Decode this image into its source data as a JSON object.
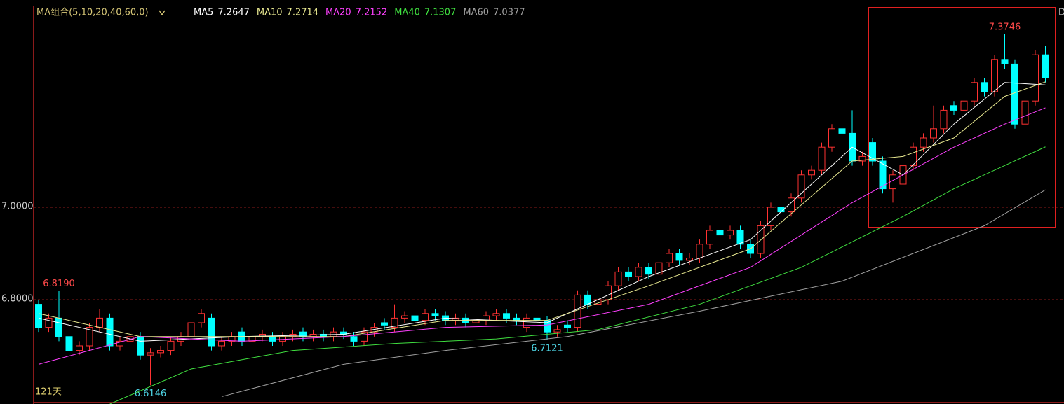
{
  "chart_data": {
    "type": "candlestick",
    "title": "MA组合(5,10,20,40,60,0)",
    "period_label": "121天",
    "corner_label": "D",
    "ylim": [
      6.5742,
      7.4485
    ],
    "yticks": [
      {
        "value": 7.0,
        "label": "7.0000"
      },
      {
        "value": 6.8,
        "label": "6.8000"
      }
    ],
    "grid": true,
    "up_color": "#ff3232",
    "down_color": "#00ffff",
    "high_label_color": "#ff4a4a",
    "low_label_color": "#4fd8e8",
    "open": [
      6.79,
      6.74,
      6.76,
      6.72,
      6.69,
      6.7,
      6.74,
      6.76,
      6.7,
      6.71,
      6.72,
      6.68,
      6.685,
      6.69,
      6.71,
      6.72,
      6.75,
      6.76,
      6.7,
      6.71,
      6.73,
      6.71,
      6.72,
      6.72,
      6.71,
      6.72,
      6.73,
      6.72,
      6.725,
      6.72,
      6.73,
      6.72,
      6.71,
      6.73,
      6.75,
      6.74,
      6.76,
      6.765,
      6.755,
      6.77,
      6.765,
      6.755,
      6.76,
      6.75,
      6.755,
      6.765,
      6.77,
      6.76,
      6.74,
      6.76,
      6.755,
      6.73,
      6.745,
      6.74,
      6.81,
      6.79,
      6.8,
      6.83,
      6.86,
      6.85,
      6.87,
      6.855,
      6.88,
      6.9,
      6.885,
      6.89,
      6.92,
      6.95,
      6.94,
      6.95,
      6.92,
      6.9,
      6.96,
      7.0,
      6.99,
      7.02,
      7.07,
      7.08,
      7.13,
      7.17,
      7.16,
      7.1,
      7.14,
      7.1,
      7.04,
      7.05,
      7.09,
      7.13,
      7.15,
      7.17,
      7.22,
      7.21,
      7.23,
      7.27,
      7.25,
      7.32,
      7.31,
      7.18,
      7.23,
      7.33
    ],
    "high": [
      6.8,
      6.77,
      {
        "value": 6.819,
        "label": "6.8190"
      },
      6.73,
      6.71,
      6.75,
      6.78,
      6.77,
      6.72,
      6.73,
      6.73,
      6.695,
      6.7,
      6.72,
      6.73,
      6.78,
      6.78,
      6.77,
      6.72,
      6.73,
      6.74,
      6.73,
      6.735,
      6.73,
      6.73,
      6.735,
      6.74,
      6.735,
      6.735,
      6.74,
      6.74,
      6.73,
      6.74,
      6.75,
      6.76,
      6.79,
      6.775,
      6.775,
      6.78,
      6.78,
      6.775,
      6.77,
      6.77,
      6.765,
      6.775,
      6.78,
      6.78,
      6.77,
      6.77,
      6.77,
      6.765,
      6.745,
      6.755,
      6.82,
      6.82,
      6.81,
      6.84,
      6.87,
      6.87,
      6.88,
      6.88,
      6.89,
      6.91,
      6.91,
      6.9,
      6.93,
      6.96,
      6.96,
      6.96,
      6.96,
      6.93,
      6.97,
      7.01,
      7.01,
      7.03,
      7.08,
      7.09,
      7.14,
      7.18,
      7.27,
      7.21,
      7.12,
      7.15,
      7.11,
      7.08,
      7.1,
      7.14,
      7.16,
      7.22,
      7.22,
      7.23,
      7.24,
      7.28,
      7.28,
      7.33,
      {
        "value": 7.3746,
        "label": "7.3746"
      },
      7.32,
      7.24,
      7.34,
      7.35
    ],
    "low": [
      6.73,
      6.73,
      6.71,
      6.68,
      6.68,
      6.69,
      6.73,
      6.69,
      6.69,
      6.7,
      6.67,
      {
        "value": 6.6146,
        "label": "6.6146"
      },
      6.675,
      6.68,
      6.7,
      6.71,
      6.74,
      6.69,
      6.69,
      6.7,
      6.7,
      6.7,
      6.71,
      6.7,
      6.7,
      6.71,
      6.71,
      6.71,
      6.71,
      6.71,
      6.715,
      6.7,
      6.7,
      6.72,
      6.735,
      6.73,
      6.75,
      6.745,
      6.745,
      6.755,
      6.745,
      6.745,
      6.74,
      6.74,
      6.745,
      6.755,
      6.75,
      6.745,
      6.73,
      6.745,
      {
        "value": 6.7121,
        "label": "6.7121"
      },
      6.72,
      6.73,
      6.73,
      6.78,
      6.78,
      6.79,
      6.82,
      6.84,
      6.84,
      6.845,
      6.845,
      6.87,
      6.875,
      6.875,
      6.88,
      6.91,
      6.93,
      6.93,
      6.91,
      6.89,
      6.89,
      6.95,
      6.98,
      6.98,
      7.01,
      7.06,
      7.07,
      7.12,
      7.15,
      7.09,
      7.09,
      7.09,
      7.03,
      7.01,
      7.04,
      7.08,
      7.12,
      7.14,
      7.16,
      7.2,
      7.2,
      7.22,
      7.24,
      7.24,
      7.3,
      7.17,
      7.17,
      7.22,
      7.27
    ],
    "close": [
      6.74,
      6.76,
      6.72,
      6.69,
      6.7,
      6.74,
      6.76,
      6.7,
      6.71,
      6.72,
      6.68,
      6.685,
      6.69,
      6.71,
      6.72,
      6.75,
      6.77,
      6.7,
      6.71,
      6.72,
      6.71,
      6.72,
      6.725,
      6.71,
      6.72,
      6.725,
      6.72,
      6.725,
      6.72,
      6.73,
      6.725,
      6.71,
      6.73,
      6.74,
      6.745,
      6.76,
      6.765,
      6.755,
      6.77,
      6.765,
      6.755,
      6.76,
      6.75,
      6.755,
      6.765,
      6.77,
      6.76,
      6.755,
      6.76,
      6.755,
      6.73,
      6.735,
      6.74,
      6.81,
      6.79,
      6.8,
      6.83,
      6.86,
      6.85,
      6.87,
      6.855,
      6.88,
      6.9,
      6.885,
      6.89,
      6.92,
      6.95,
      6.94,
      6.95,
      6.92,
      6.9,
      6.96,
      7.0,
      6.99,
      7.02,
      7.07,
      7.08,
      7.13,
      7.17,
      7.16,
      7.1,
      7.11,
      7.1,
      7.04,
      7.07,
      7.09,
      7.13,
      7.15,
      7.17,
      7.21,
      7.21,
      7.23,
      7.27,
      7.25,
      7.32,
      7.31,
      7.18,
      7.23,
      7.33,
      7.28
    ],
    "series": [
      {
        "name": "MA5",
        "color": "#ffffff",
        "x": [
          0,
          10,
          20,
          30,
          40,
          50,
          60,
          70,
          80,
          85,
          90,
          95,
          99
        ],
        "values": [
          6.76,
          6.71,
          6.72,
          6.725,
          6.76,
          6.75,
          6.85,
          6.93,
          7.13,
          7.07,
          7.18,
          7.27,
          7.2647
        ]
      },
      {
        "name": "MA10",
        "color": "#e8e890",
        "x": [
          0,
          10,
          20,
          30,
          40,
          50,
          60,
          70,
          80,
          85,
          90,
          95,
          99
        ],
        "values": [
          6.77,
          6.72,
          6.72,
          6.72,
          6.755,
          6.755,
          6.83,
          6.91,
          7.1,
          7.11,
          7.15,
          7.24,
          7.2714
        ]
      },
      {
        "name": "MA20",
        "color": "#ff40ff",
        "x": [
          0,
          10,
          20,
          30,
          40,
          50,
          60,
          70,
          80,
          85,
          90,
          95,
          99
        ],
        "values": [
          6.66,
          6.72,
          6.71,
          6.72,
          6.74,
          6.745,
          6.79,
          6.87,
          7.01,
          7.07,
          7.13,
          7.18,
          7.2152
        ]
      },
      {
        "name": "MA40",
        "color": "#40e040",
        "x": [
          7,
          15,
          25,
          35,
          45,
          55,
          65,
          75,
          85,
          90,
          99
        ],
        "values": [
          6.574,
          6.65,
          6.69,
          6.705,
          6.715,
          6.735,
          6.79,
          6.87,
          6.98,
          7.04,
          7.1307
        ]
      },
      {
        "name": "MA60",
        "color": "#a0a0a0",
        "x": [
          18,
          30,
          40,
          52,
          65,
          79,
          93,
          99
        ],
        "values": [
          6.59,
          6.66,
          6.69,
          6.72,
          6.775,
          6.84,
          6.96,
          7.0377
        ]
      }
    ]
  }
}
